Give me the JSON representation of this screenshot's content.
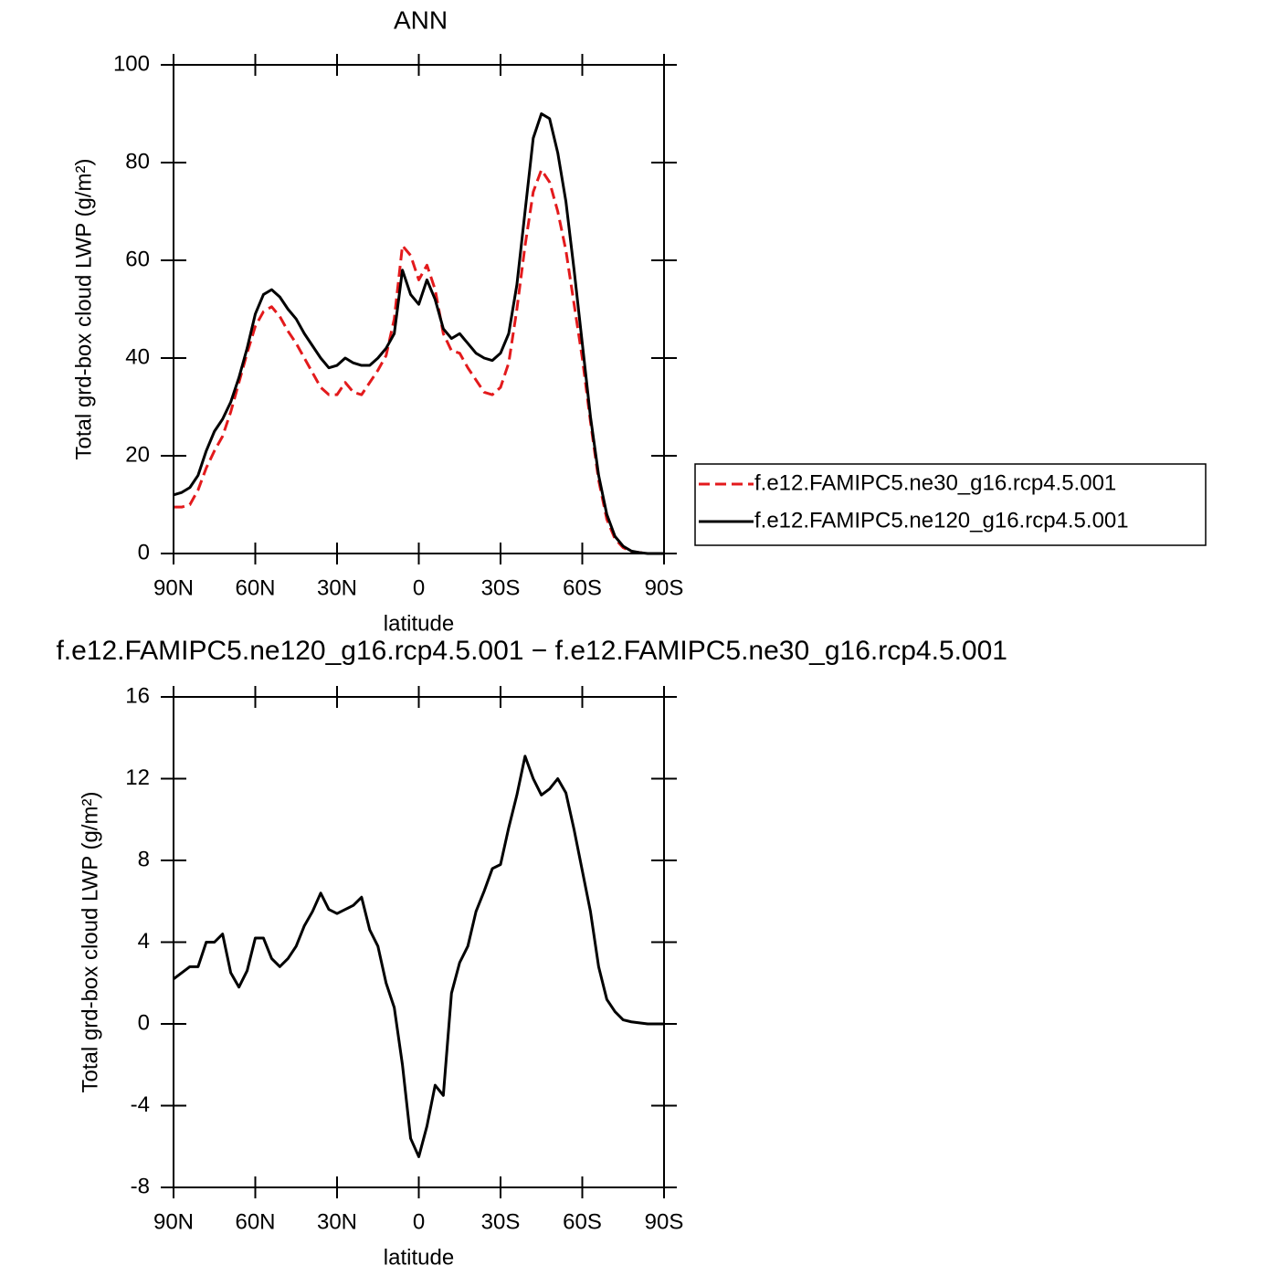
{
  "chart_data": [
    {
      "type": "line",
      "title": "ANN",
      "xlabel": "latitude",
      "ylabel": "Total grd-box cloud LWP (g/m²)",
      "x": [
        90,
        87,
        84,
        81,
        78,
        75,
        72,
        69,
        66,
        63,
        60,
        57,
        54,
        51,
        48,
        45,
        42,
        39,
        36,
        33,
        30,
        27,
        24,
        21,
        18,
        15,
        12,
        9,
        6,
        3,
        0,
        -3,
        -6,
        -9,
        -12,
        -15,
        -18,
        -21,
        -24,
        -27,
        -30,
        -33,
        -36,
        -39,
        -42,
        -45,
        -48,
        -51,
        -54,
        -57,
        -60,
        -63,
        -66,
        -69,
        -72,
        -75,
        -78,
        -81,
        -84,
        -87,
        -90
      ],
      "xlim": [
        90,
        -90
      ],
      "xticks": [
        {
          "value": 90,
          "label": "90N"
        },
        {
          "value": 60,
          "label": "60N"
        },
        {
          "value": 30,
          "label": "30N"
        },
        0,
        {
          "value": -30,
          "label": "30S"
        },
        {
          "value": -60,
          "label": "60S"
        },
        {
          "value": -90,
          "label": "90S"
        }
      ],
      "ylim": [
        0,
        100
      ],
      "yticks": [
        0,
        20,
        40,
        60,
        80,
        100
      ],
      "legend": "right",
      "series": [
        {
          "name": "f.e12.FAMIPC5.ne30_g16.rcp4.5.001",
          "color": "#e31a1c",
          "dash": true,
          "values": [
            9.5,
            9.5,
            10,
            13,
            17.5,
            21,
            24,
            29,
            35,
            41,
            46.5,
            49.5,
            50.5,
            48.5,
            45.5,
            43,
            40,
            37,
            34,
            32.5,
            32.5,
            35,
            33,
            32.5,
            35,
            37.5,
            40.5,
            48,
            63,
            61,
            56,
            59,
            54,
            45,
            41.5,
            41,
            38,
            35.5,
            33,
            32.5,
            34,
            39,
            50,
            63,
            74,
            78.5,
            76,
            70,
            62,
            51,
            40,
            27,
            15,
            7,
            3,
            1.2,
            0.4,
            0.2,
            0,
            0,
            0
          ]
        },
        {
          "name": "f.e12.FAMIPC5.ne120_g16.rcp4.5.001",
          "color": "#000000",
          "dash": false,
          "values": [
            12,
            12.5,
            13.5,
            16,
            21,
            25,
            27.5,
            31,
            36,
            42,
            49,
            53,
            54,
            52.5,
            50,
            48,
            45,
            42.5,
            40,
            38,
            38.5,
            40,
            39,
            38.5,
            38.5,
            40,
            42,
            45,
            58,
            53,
            51,
            56,
            52,
            46,
            44,
            45,
            43,
            41,
            40,
            39.5,
            41,
            45,
            55,
            70,
            85,
            90,
            89,
            82,
            72,
            58,
            43,
            28,
            16,
            8,
            3.5,
            1.5,
            0.5,
            0.2,
            0,
            0,
            0
          ]
        }
      ]
    },
    {
      "type": "line",
      "title": "f.e12.FAMIPC5.ne120_g16.rcp4.5.001  −  f.e12.FAMIPC5.ne30_g16.rcp4.5.001",
      "xlabel": "latitude",
      "ylabel": "Total grd-box cloud LWP (g/m²)",
      "x": [
        90,
        87,
        84,
        81,
        78,
        75,
        72,
        69,
        66,
        63,
        60,
        57,
        54,
        51,
        48,
        45,
        42,
        39,
        36,
        33,
        30,
        27,
        24,
        21,
        18,
        15,
        12,
        9,
        6,
        3,
        0,
        -3,
        -6,
        -9,
        -12,
        -15,
        -18,
        -21,
        -24,
        -27,
        -30,
        -33,
        -36,
        -39,
        -42,
        -45,
        -48,
        -51,
        -54,
        -57,
        -60,
        -63,
        -66,
        -69,
        -72,
        -75,
        -78,
        -81,
        -84,
        -87,
        -90
      ],
      "xlim": [
        90,
        -90
      ],
      "xticks": [
        {
          "value": 90,
          "label": "90N"
        },
        {
          "value": 60,
          "label": "60N"
        },
        {
          "value": 30,
          "label": "30N"
        },
        0,
        {
          "value": -30,
          "label": "30S"
        },
        {
          "value": -60,
          "label": "60S"
        },
        {
          "value": -90,
          "label": "90S"
        }
      ],
      "ylim": [
        -8,
        16
      ],
      "yticks": [
        -8,
        -4,
        0,
        4,
        8,
        12,
        16
      ],
      "series": [
        {
          "color": "#000000",
          "dash": false,
          "values": [
            2.2,
            2.5,
            2.8,
            2.8,
            4,
            4,
            4.4,
            2.5,
            1.8,
            2.6,
            4.2,
            4.2,
            3.2,
            2.8,
            3.2,
            3.8,
            4.8,
            5.5,
            6.4,
            5.6,
            5.4,
            5.6,
            5.8,
            6.2,
            4.6,
            3.8,
            2,
            0.8,
            -2,
            -5.6,
            -6.5,
            -5,
            -3,
            -3.5,
            1.5,
            3,
            3.8,
            5.5,
            6.5,
            7.6,
            7.8,
            9.6,
            11.2,
            13.1,
            12,
            11.2,
            11.5,
            12,
            11.3,
            9.5,
            7.5,
            5.5,
            2.8,
            1.2,
            0.6,
            0.2,
            0.1,
            0.05,
            0,
            0,
            0
          ]
        }
      ]
    }
  ]
}
